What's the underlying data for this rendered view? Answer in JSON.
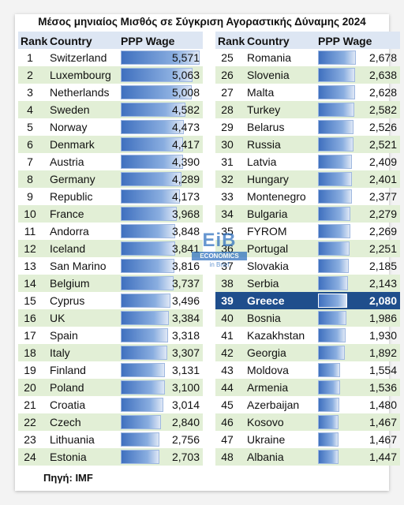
{
  "title": "Μέσος μηνιαίος Μισθός σε Σύγκριση Αγοραστικής Δύναμης 2024",
  "headers": {
    "rank": "Rank",
    "country": "Country",
    "wage": "PPP Wage"
  },
  "source": "Πηγή: IMF",
  "logo": {
    "main": "EiB",
    "band": "ECONOMICS",
    "sub": "in Brief"
  },
  "colors": {
    "bar_dark": "#3f70bf",
    "bar_light": "#dfe8f6",
    "stripe": "#e2efd6",
    "header": "#dde6f3",
    "highlight": "#1f4e8c"
  },
  "chart_data": {
    "type": "table",
    "title": "Μέσος μηνιαίος Μισθός σε Σύγκριση Αγοραστικής Δύναμης 2024",
    "columns": [
      "Rank",
      "Country",
      "PPP Wage"
    ],
    "highlight_country": "Greece",
    "value_max": 5571,
    "rows": [
      {
        "rank": "1",
        "country": "Switzerland",
        "value": 5571,
        "label": "5,571"
      },
      {
        "rank": "2",
        "country": "Luxembourg",
        "value": 5063,
        "label": "5,063"
      },
      {
        "rank": "3",
        "country": "Netherlands",
        "value": 5008,
        "label": "5,008"
      },
      {
        "rank": "4",
        "country": "Sweden",
        "value": 4582,
        "label": "4,582"
      },
      {
        "rank": "5",
        "country": "Norway",
        "value": 4473,
        "label": "4,473"
      },
      {
        "rank": "6",
        "country": "Denmark",
        "value": 4417,
        "label": "4,417"
      },
      {
        "rank": "7",
        "country": "Austria",
        "value": 4390,
        "label": "4,390"
      },
      {
        "rank": "8",
        "country": "Germany",
        "value": 4289,
        "label": "4,289"
      },
      {
        "rank": "9",
        "country": "Republic",
        "value": 4173,
        "label": "4,173"
      },
      {
        "rank": "10",
        "country": "France",
        "value": 3968,
        "label": "3,968"
      },
      {
        "rank": "11",
        "country": "Andorra",
        "value": 3848,
        "label": "3,848"
      },
      {
        "rank": "12",
        "country": "Iceland",
        "value": 3841,
        "label": "3,841"
      },
      {
        "rank": "13",
        "country": "San Marino",
        "value": 3816,
        "label": "3,816"
      },
      {
        "rank": "14",
        "country": "Belgium",
        "value": 3737,
        "label": "3,737"
      },
      {
        "rank": "15",
        "country": "Cyprus",
        "value": 3496,
        "label": "3,496"
      },
      {
        "rank": "16",
        "country": "UK",
        "value": 3384,
        "label": "3,384"
      },
      {
        "rank": "17",
        "country": "Spain",
        "value": 3318,
        "label": "3,318"
      },
      {
        "rank": "18",
        "country": "Italy",
        "value": 3307,
        "label": "3,307"
      },
      {
        "rank": "19",
        "country": "Finland",
        "value": 3131,
        "label": "3,131"
      },
      {
        "rank": "20",
        "country": "Poland",
        "value": 3100,
        "label": "3,100"
      },
      {
        "rank": "21",
        "country": "Croatia",
        "value": 3014,
        "label": "3,014"
      },
      {
        "rank": "22",
        "country": "Czech",
        "value": 2840,
        "label": "2,840"
      },
      {
        "rank": "23",
        "country": "Lithuania",
        "value": 2756,
        "label": "2,756"
      },
      {
        "rank": "24",
        "country": "Estonia",
        "value": 2703,
        "label": "2,703"
      },
      {
        "rank": "25",
        "country": "Romania",
        "value": 2678,
        "label": "2,678"
      },
      {
        "rank": "26",
        "country": "Slovenia",
        "value": 2638,
        "label": "2,638"
      },
      {
        "rank": "27",
        "country": "Malta",
        "value": 2628,
        "label": "2,628"
      },
      {
        "rank": "28",
        "country": "Turkey",
        "value": 2582,
        "label": "2,582"
      },
      {
        "rank": "29",
        "country": "Belarus",
        "value": 2526,
        "label": "2,526"
      },
      {
        "rank": "30",
        "country": "Russia",
        "value": 2521,
        "label": "2,521"
      },
      {
        "rank": "31",
        "country": "Latvia",
        "value": 2409,
        "label": "2,409"
      },
      {
        "rank": "32",
        "country": "Hungary",
        "value": 2401,
        "label": "2,401"
      },
      {
        "rank": "33",
        "country": "Montenegro",
        "value": 2377,
        "label": "2,377"
      },
      {
        "rank": "34",
        "country": "Bulgaria",
        "value": 2279,
        "label": "2,279"
      },
      {
        "rank": "35",
        "country": "FYROM",
        "value": 2269,
        "label": "2,269"
      },
      {
        "rank": "36",
        "country": "Portugal",
        "value": 2251,
        "label": "2,251"
      },
      {
        "rank": "37",
        "country": "Slovakia",
        "value": 2185,
        "label": "2,185"
      },
      {
        "rank": "38",
        "country": "Serbia",
        "value": 2143,
        "label": "2,143"
      },
      {
        "rank": "39",
        "country": "Greece",
        "value": 2080,
        "label": "2,080"
      },
      {
        "rank": "40",
        "country": "Bosnia",
        "value": 1986,
        "label": "1,986"
      },
      {
        "rank": "41",
        "country": "Kazakhstan",
        "value": 1930,
        "label": "1,930"
      },
      {
        "rank": "42",
        "country": "Georgia",
        "value": 1892,
        "label": "1,892"
      },
      {
        "rank": "43",
        "country": "Moldova",
        "value": 1554,
        "label": "1,554"
      },
      {
        "rank": "44",
        "country": "Armenia",
        "value": 1536,
        "label": "1,536"
      },
      {
        "rank": "45",
        "country": "Azerbaijan",
        "value": 1480,
        "label": "1,480"
      },
      {
        "rank": "46",
        "country": "Kosovo",
        "value": 1467,
        "label": "1,467"
      },
      {
        "rank": "47",
        "country": "Ukraine",
        "value": 1467,
        "label": "1,467"
      },
      {
        "rank": "48",
        "country": "Albania",
        "value": 1447,
        "label": "1,447"
      }
    ]
  }
}
